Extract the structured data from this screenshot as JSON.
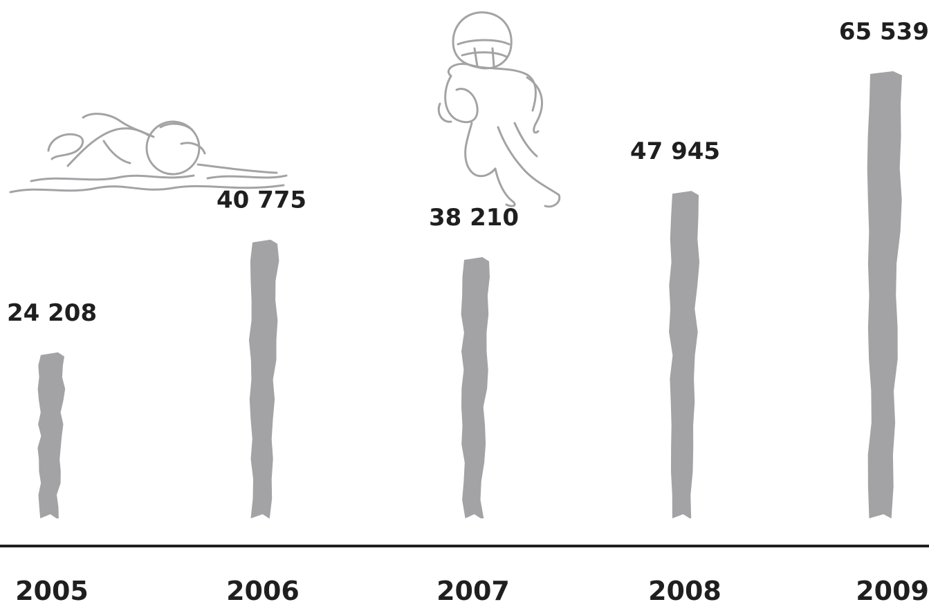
{
  "chart_data": {
    "type": "bar",
    "categories": [
      "2005",
      "2006",
      "2007",
      "2008",
      "2009"
    ],
    "values": [
      24208,
      40775,
      38210,
      47945,
      65539
    ],
    "value_labels": [
      "24 208",
      "40 775",
      "38 210",
      "47 945",
      "65 539"
    ],
    "title": "",
    "xlabel": "",
    "ylabel": "",
    "ylim": [
      0,
      65539
    ],
    "grid": false,
    "legend": "none",
    "bar_color": "#a3a3a6",
    "axis_color": "#1f1f1f",
    "text_color": "#1f1f1f"
  },
  "illustrations": [
    "swimmer-sketch",
    "football-player-sketch"
  ]
}
